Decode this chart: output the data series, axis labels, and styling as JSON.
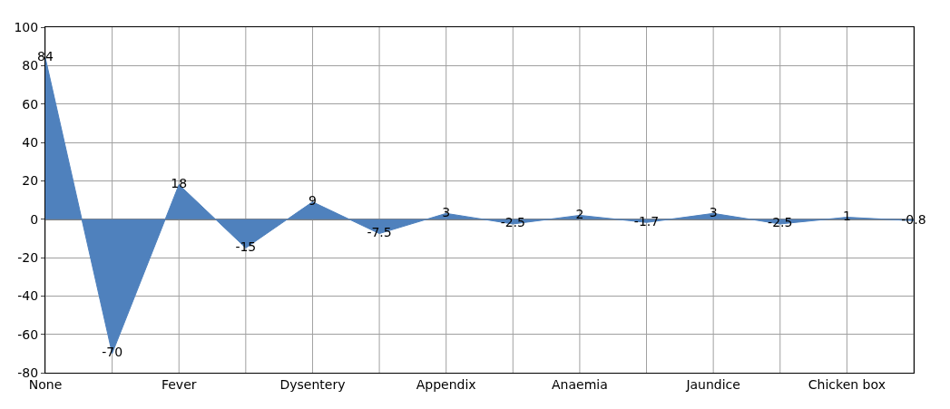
{
  "chart_data": {
    "type": "area",
    "categories": [
      "None",
      null,
      "Fever",
      null,
      "Dysentery",
      null,
      "Appendix",
      null,
      "Anaemia",
      null,
      "Jaundice",
      null,
      "Chicken box",
      null
    ],
    "values": [
      84,
      -70,
      18,
      -15,
      9,
      -7.5,
      3,
      -2.5,
      2,
      -1.7,
      3,
      -2.5,
      1,
      -0.8
    ],
    "color": "#4f81bd",
    "ylim": [
      -80,
      100
    ],
    "yticks": [
      -80,
      -60,
      -40,
      -20,
      0,
      20,
      40,
      60,
      80,
      100
    ],
    "grid": true,
    "legend": false,
    "marker": "none",
    "data_labels": true
  }
}
